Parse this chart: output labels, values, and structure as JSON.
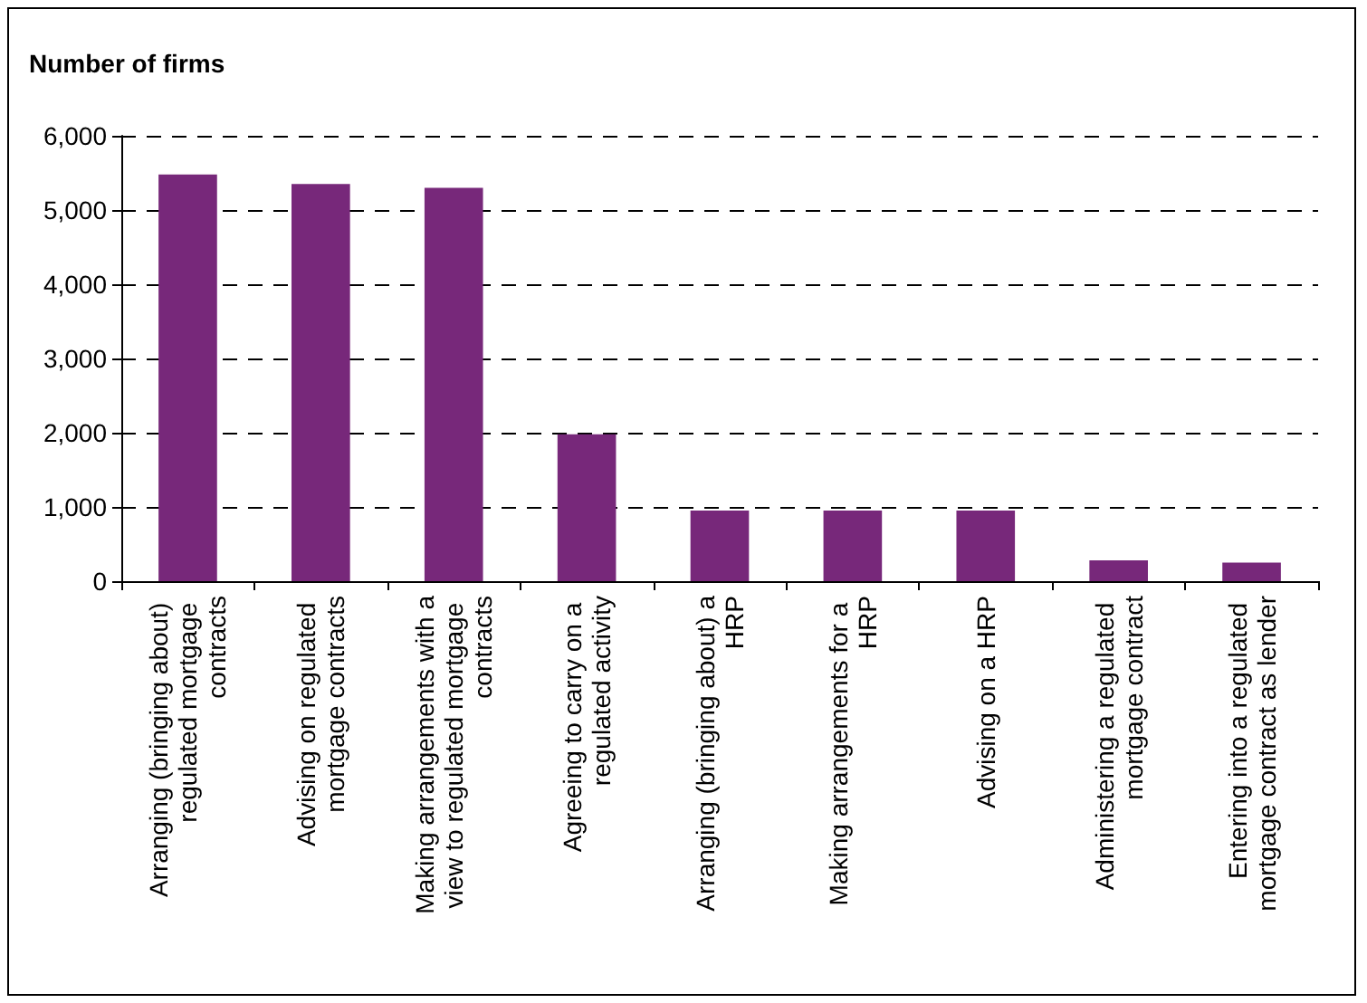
{
  "chart_data": {
    "type": "bar",
    "title": "Number of firms",
    "categories": [
      "Arranging (bringing about) regulated mortgage contracts",
      "Advising on regulated mortgage contracts",
      "Making arrangements with a view to regulated mortgage contracts",
      "Agreeing to carry on a regulated activity",
      "Arranging (bringing about) a HRP",
      "Making arrangements for a HRP",
      "Advising on a HRP",
      "Administering a regulated mortgage contract",
      "Entering into a regulated mortgage contract as lender"
    ],
    "values": [
      5480,
      5350,
      5300,
      1980,
      950,
      950,
      950,
      280,
      250
    ],
    "color": "#77287a",
    "ylim": [
      0,
      6000
    ],
    "yticks": [
      0,
      {
        "value": 1000,
        "label": "1,000"
      },
      {
        "value": 2000,
        "label": "2,000"
      },
      {
        "value": 3000,
        "label": "3,000"
      },
      {
        "value": 4000,
        "label": "4,000"
      },
      {
        "value": 5000,
        "label": "5,000"
      },
      {
        "value": 6000,
        "label": "6,000"
      }
    ],
    "grid": "y"
  }
}
